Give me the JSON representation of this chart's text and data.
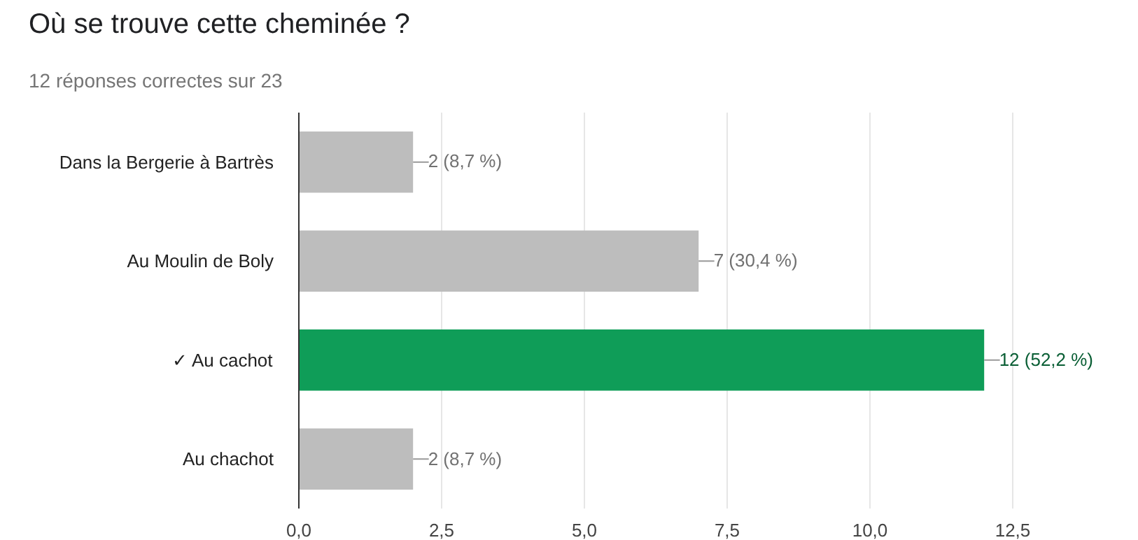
{
  "chart_data": {
    "type": "bar",
    "orientation": "horizontal",
    "title": "Où se trouve cette cheminée ?",
    "subtitle": "12 réponses correctes sur 23",
    "categories": [
      "Dans la Bergerie à Bartrès",
      "Au Moulin de Boly",
      "✓ Au cachot",
      "Au chachot"
    ],
    "values": [
      2,
      7,
      12,
      2
    ],
    "colors": [
      "#bdbdbd",
      "#bdbdbd",
      "#0f9d58",
      "#bdbdbd"
    ],
    "value_labels": [
      "2 (8,7 %)",
      "7 (30,4 %)",
      "12 (52,2 %)",
      "2 (8,7 %)"
    ],
    "xlim": [
      0,
      12.5
    ],
    "xticks": [
      {
        "value": 0,
        "label": "0,0"
      },
      {
        "value": 2.5,
        "label": "2,5"
      },
      {
        "value": 5,
        "label": "5,0"
      },
      {
        "value": 7.5,
        "label": "7,5"
      },
      {
        "value": 10,
        "label": "10,0"
      },
      {
        "value": 12.5,
        "label": "12,5"
      }
    ],
    "grid": "x"
  }
}
